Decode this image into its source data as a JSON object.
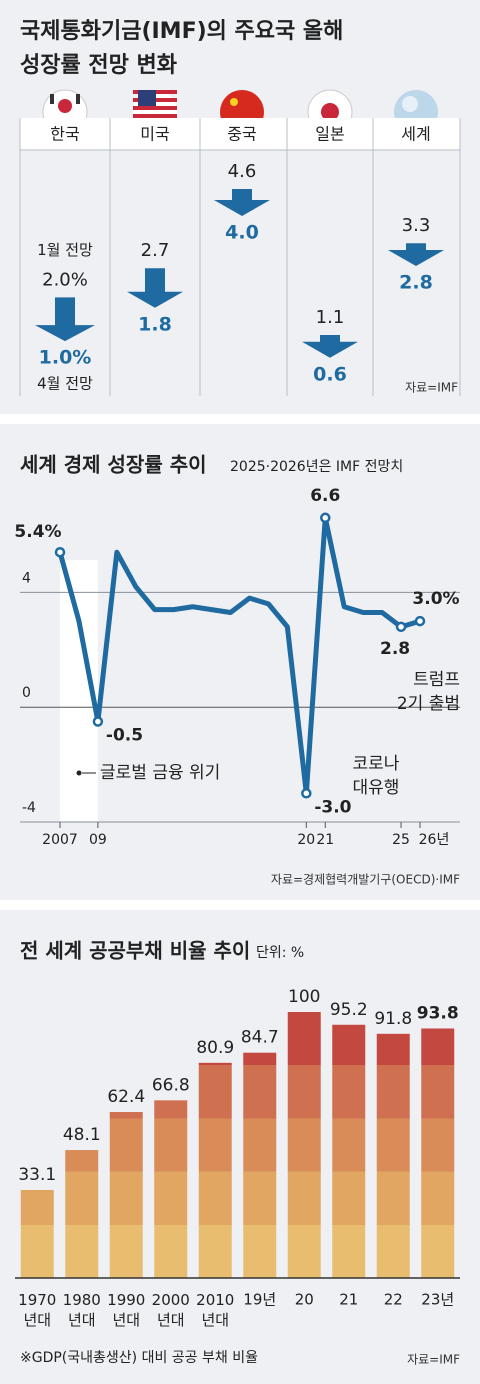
{
  "chart_data": [
    {
      "type": "arrow",
      "title": "국제통화기금(IMF)의 주요국 올해\n성장률 전망 변화",
      "categories": [
        "한국",
        "미국",
        "중국",
        "일본",
        "세계"
      ],
      "series": [
        {
          "name": "1월 전망",
          "values": [
            2.0,
            2.7,
            4.6,
            1.1,
            3.3
          ],
          "value_labels": [
            "2.0%",
            "2.7",
            "4.6",
            "1.1",
            "3.3"
          ]
        },
        {
          "name": "4월 전망",
          "values": [
            1.0,
            1.8,
            4.0,
            0.6,
            2.8
          ],
          "value_labels": [
            "1.0%",
            "1.8",
            "4.0",
            "0.6",
            "2.8"
          ]
        }
      ],
      "color": "#1f6aa0",
      "source": "자료=IMF"
    },
    {
      "type": "line",
      "title": "세계 경제 성장률 추이",
      "subtitle": "2025·2026년은 IMF 전망치",
      "x": [
        2007,
        2008,
        2009,
        2010,
        2011,
        2012,
        2013,
        2014,
        2015,
        2016,
        2017,
        2018,
        2019,
        2020,
        2021,
        2022,
        2023,
        2024,
        2025,
        2026
      ],
      "values": [
        5.4,
        3.0,
        -0.5,
        5.4,
        4.2,
        3.4,
        3.4,
        3.5,
        3.4,
        3.3,
        3.8,
        3.6,
        2.8,
        -3.0,
        6.6,
        3.5,
        3.3,
        3.3,
        2.8,
        3.0
      ],
      "value_labels": [
        "5.4%",
        null,
        "-0.5",
        null,
        null,
        null,
        null,
        null,
        null,
        null,
        null,
        null,
        null,
        "-3.0",
        "6.6",
        null,
        null,
        null,
        "2.8",
        "3.0%"
      ],
      "color": "#1f6aa0",
      "xlim": [
        2007,
        2026
      ],
      "xticks": [
        {
          "value": 2007,
          "label": "2007"
        },
        {
          "value": 2009,
          "label": "09"
        },
        {
          "value": 2020,
          "label": "20"
        },
        {
          "value": 2021,
          "label": "21"
        },
        {
          "value": 2025,
          "label": "25"
        },
        {
          "value": 2026,
          "label": "26년"
        }
      ],
      "ylim": [
        -4,
        7
      ],
      "yticks": [
        -4,
        0,
        4
      ],
      "grid": true,
      "annotations": [
        "글로벌 금융 위기",
        "코로나\n대유행",
        "트럼프\n2기 출범"
      ],
      "source": "자료=경제협력개발기구(OECD)·IMF"
    },
    {
      "type": "bar",
      "title": "전 세계 공공부채 비율 추이",
      "subtitle": "단위: %",
      "categories": [
        "1970\n년대",
        "1980\n년대",
        "1990\n년대",
        "2000\n년대",
        "2010\n년대",
        "19년",
        "20",
        "21",
        "22",
        "23년"
      ],
      "values": [
        33.1,
        48.1,
        62.4,
        66.8,
        80.9,
        84.7,
        100,
        95.2,
        91.8,
        93.8
      ],
      "colors": [
        "#e8bd70",
        "#e0a662",
        "#d98c57",
        "#cf7150",
        "#c3483f"
      ],
      "note": "※GDP(국내총생산) 대비 공공 부채 비율",
      "source": "자료=IMF"
    }
  ]
}
